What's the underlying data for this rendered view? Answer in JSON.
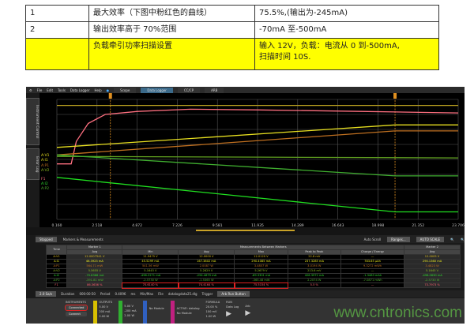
{
  "spec_table": [
    {
      "no": "1",
      "item": "最大效率（下图中粉红色的曲线）",
      "value": "75.5%,(输出为-245mA)"
    },
    {
      "no": "2",
      "item": "输出效率高于 70%范围",
      "value": "-70mA 至-500mA"
    },
    {
      "no": "",
      "item": "负载牵引功率扫描设置",
      "value": "输入 12V，负载：电流从 0 到-500mA,",
      "value2": "扫描时间 10S."
    }
  ],
  "app": {
    "menu": [
      "File",
      "Edit",
      "Tools",
      "Data Logger",
      "Help"
    ],
    "tabs": [
      "Scope",
      "Data Logger",
      "CC/CP",
      "ARB"
    ],
    "side_tabs": [
      "Instrument Control",
      "Error Log"
    ],
    "status": "Stopped",
    "markers_label": "Markers & Measurements",
    "toolbar": [
      "Auto Scroll",
      "Ranges...",
      "AUTO SCALE"
    ],
    "table_headers": [
      "Time",
      "Marker 1",
      "Measurements Between Markers",
      "Marker 2"
    ],
    "sub_headers": [
      "Avg",
      "Min",
      "Avg",
      "Max",
      "Peak to Peak",
      "Charge / Energy",
      "Avg"
    ],
    "rows": [
      {
        "name": "A:V1",
        "c": [
          "12.0007541 V",
          "11.9475 V",
          "12.0000 V",
          "12.0120 V",
          "22.8 mV",
          "—",
          "12.0005 V"
        ],
        "color": "#e0c020"
      },
      {
        "name": "A:I1",
        "c": [
          "46.3923 mA",
          "45.5299 mA",
          "167.3802 mA",
          "290.4085 mA",
          "237.3285 mA",
          "783.65 µAh",
          "290.1360 mA"
        ],
        "color": "#f0f020"
      },
      {
        "name": "A:P1",
        "c": [
          "564.71 mW",
          "541.56 mW",
          "2.0087 W",
          "3.4857 W",
          "3.0194 W",
          "9.3272 mWh",
          "3.4823 W"
        ],
        "color": "#c07020"
      },
      {
        "name": "A:V2",
        "c": [
          "5.5655 V",
          "5.1645 V",
          "5.2629 V",
          "5.2679 V",
          "213.6 mV",
          "—",
          "5.1645 V"
        ],
        "color": "#90c020"
      },
      {
        "name": "A:I2",
        "c": [
          "-70.8366 mA",
          "-498.2271 mA",
          "-294.4879 mA",
          "-69.3301 mA",
          "428.3972 mA",
          "-1.3483 mAh",
          "-498.0630 mA"
        ],
        "color": "#30e030"
      },
      {
        "name": "A:P2",
        "c": [
          "-391.81 mW",
          "-2.5730 W",
          "-1.5365 W",
          "-365.48 mW",
          "2.2074 W",
          "-7.0871 mWh",
          "-2.5730 W"
        ],
        "color": "#50b030"
      },
      {
        "name": "F1",
        "c": [
          "86.3636 %",
          "70.6140 %",
          "74.4164 %",
          "75.5154 %",
          "5.5 %",
          "—",
          "73.7973 %"
        ],
        "color": "#ff6070"
      }
    ],
    "settings": {
      "rate": "2.0 Sa/s",
      "duration_label": "Duration",
      "duration": "000:00:50",
      "period_label": "Period",
      "period": "0.4096",
      "period_unit": "ms",
      "minmax": "Min/Max",
      "file_label": "File",
      "file": "datalogdata25.dlg",
      "trigger_label": "Trigger",
      "trigger": "Arb Run Button"
    },
    "bottom": {
      "instruments": "INSTRUMENTS",
      "a": "Connected",
      "b": "Connect",
      "outputs": "OUTPUTS",
      "ch1": [
        "5.00 V",
        "200 mA",
        "2.00 W"
      ],
      "ch2": [
        "5.00 V",
        "-200 mA",
        "2.00 W"
      ],
      "no_module": "No Module",
      "active": "ACTIVE: datalog",
      "formula": "FORMULA",
      "f": [
        "20.00 %",
        "100 mV",
        "1.00 W"
      ],
      "run": "RUN",
      "datalog": "Data Log",
      "arb": "Arb"
    },
    "watermark": "www.cntronics.com"
  },
  "chart_data": {
    "type": "line",
    "grid": true,
    "x_ticks": [
      "0.160",
      "2.518",
      "4.872",
      "7.226",
      "9.581",
      "11.935",
      "14.289",
      "16.643",
      "18.998",
      "21.352",
      "23.706"
    ],
    "xlim": [
      0.16,
      23.706
    ],
    "ylim": [
      0,
      8
    ],
    "cursors": [
      3.3,
      20.0
    ],
    "channel_labels": [
      "A:V1",
      "A:I1",
      "A:P1",
      "A:V2",
      "F1",
      "A:I2",
      "A:P2"
    ],
    "series": [
      {
        "color": "#b8a020",
        "x": [
          0.16,
          23.706
        ],
        "y": [
          7.6,
          7.6
        ]
      },
      {
        "color": "#ff7080",
        "x": [
          0.16,
          1.0,
          1.3,
          2,
          3,
          4.9,
          8,
          12,
          18,
          23.706
        ],
        "y": [
          3.7,
          3.7,
          5.2,
          6.4,
          7.0,
          7.2,
          7.35,
          7.3,
          7.2,
          7.1
        ]
      },
      {
        "color": "#e8e020",
        "x": [
          0.16,
          20,
          23.706
        ],
        "y": [
          4.8,
          6.3,
          6.3
        ]
      },
      {
        "color": "#c07020",
        "x": [
          0.16,
          20,
          23.706
        ],
        "y": [
          4.3,
          5.9,
          5.9
        ]
      },
      {
        "color": "#60a020",
        "x": [
          0.16,
          12,
          23.706
        ],
        "y": [
          4.2,
          4.15,
          4.1
        ]
      },
      {
        "color": "#40b030",
        "x": [
          0.16,
          20,
          23.706
        ],
        "y": [
          4.3,
          2.9,
          2.9
        ]
      },
      {
        "color": "#20e020",
        "x": [
          0.16,
          20,
          23.706
        ],
        "y": [
          2.8,
          0.5,
          0.5
        ]
      }
    ]
  }
}
